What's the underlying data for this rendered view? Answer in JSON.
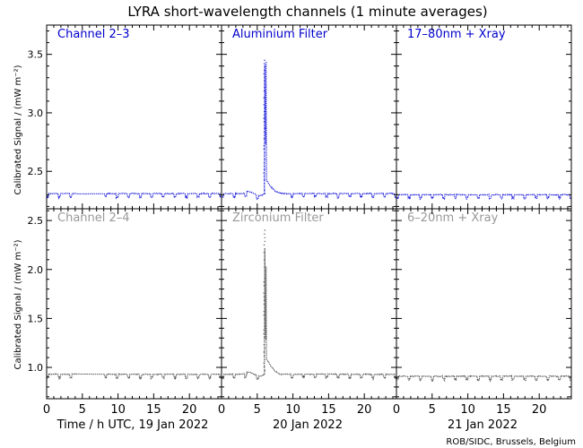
{
  "chart_data": {
    "type": "scatter",
    "title": "LYRA short-wavelength channels (1 minute averages)",
    "ylabel": "Calibrated Signal / (mW m⁻²)",
    "credit": "ROB/SIDC, Brussels, Belgium",
    "xticks": [
      0,
      5,
      10,
      15,
      20
    ],
    "days": [
      {
        "label": "Time / h UTC, 19 Jan 2022"
      },
      {
        "label": "20 Jan 2022"
      },
      {
        "label": "21 Jan 2022"
      }
    ],
    "rows": [
      {
        "ylim": [
          2.18,
          3.75
        ],
        "yticks": [
          2.5,
          3.0,
          3.5
        ],
        "color": "#1a1adb",
        "panels": [
          {
            "title": "Channel 2–3",
            "title_color": "#0000cc",
            "baseline": 2.31,
            "gap": [
              4.2,
              8.0
            ],
            "flare": null
          },
          {
            "title": "Aluminium Filter",
            "title_color": "#0000cc",
            "baseline": 2.31,
            "gap": null,
            "flare": {
              "peak_hour": 6.0,
              "peak": 3.45,
              "decay_level": 2.43
            }
          },
          {
            "title": "17–80nm + Xray",
            "title_color": "#0000cc",
            "baseline": 2.3,
            "gap": null,
            "flare": null
          }
        ]
      },
      {
        "ylim": [
          0.68,
          2.62
        ],
        "yticks": [
          1.0,
          1.5,
          2.0,
          2.5
        ],
        "color": "#555555",
        "panels": [
          {
            "title": "Channel 2–4",
            "title_color": "#999999",
            "baseline": 0.93,
            "gap": [
              4.2,
              8.0
            ],
            "flare": null
          },
          {
            "title": "Zirconium Filter",
            "title_color": "#999999",
            "baseline": 0.93,
            "gap": null,
            "flare": {
              "peak_hour": 6.0,
              "peak": 2.4,
              "decay_level": 1.1
            }
          },
          {
            "title": "6–20nm + Xray",
            "title_color": "#999999",
            "baseline": 0.91,
            "gap": null,
            "flare": null
          }
        ]
      }
    ]
  }
}
